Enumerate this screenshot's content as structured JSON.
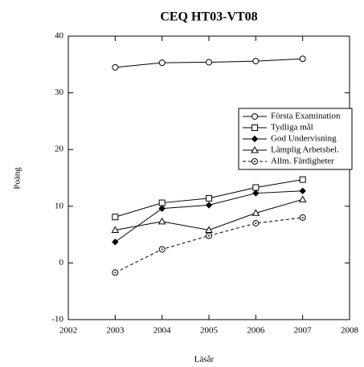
{
  "chart_data": {
    "type": "line",
    "title": "CEQ HT03-VT08",
    "x_label": "Läsår",
    "y_label": "Poäng",
    "x": [
      2003,
      2004,
      2005,
      2006,
      2007
    ],
    "xlim": [
      2002,
      2008
    ],
    "xticks": [
      2002,
      2003,
      2004,
      2005,
      2006,
      2007,
      2008
    ],
    "ylim": [
      -10,
      40
    ],
    "yticks": [
      -10,
      0,
      10,
      20,
      30,
      40
    ],
    "legend": "right",
    "grid": false,
    "series": [
      {
        "name": "Första Examination",
        "color": "#000000",
        "marker": "circle",
        "dashed": false,
        "values": [
          34.5,
          35.3,
          35.4,
          35.6,
          36.0
        ]
      },
      {
        "name": "Tydliga mål",
        "color": "#000000",
        "marker": "square",
        "dashed": false,
        "values": [
          8.1,
          10.6,
          11.4,
          13.3,
          14.7
        ]
      },
      {
        "name": "God Undervisning",
        "color": "#000000",
        "marker": "diamond",
        "dashed": false,
        "values": [
          3.7,
          9.6,
          10.2,
          12.3,
          12.7
        ]
      },
      {
        "name": "Lämplig Arbetsbel.",
        "color": "#000000",
        "marker": "triangle",
        "dashed": false,
        "values": [
          5.8,
          7.3,
          5.8,
          8.8,
          11.2
        ]
      },
      {
        "name": "Allm. Färdigheter",
        "color": "#000000",
        "marker": "dotcircle",
        "dashed": true,
        "values": [
          -1.7,
          2.4,
          4.8,
          7.0,
          8.0
        ]
      }
    ]
  }
}
